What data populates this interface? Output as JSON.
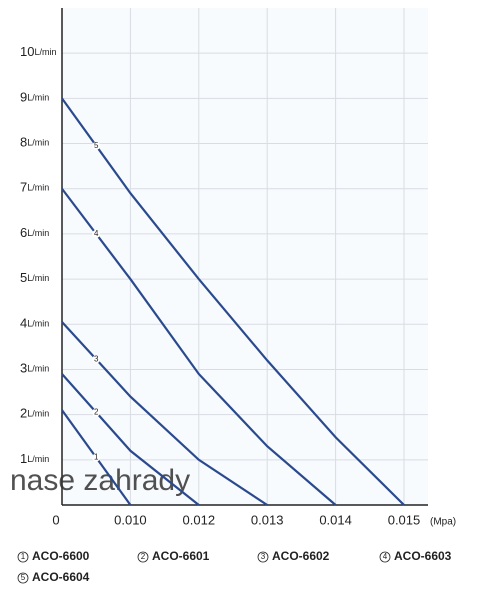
{
  "chart_data": {
    "type": "line",
    "x_unit": "(Mpa)",
    "y_unit": "L/min",
    "watermark": "nase zahrady",
    "categories": [
      "0",
      "0.010",
      "0.012",
      "0.013",
      "0.014",
      "0.015"
    ],
    "ylim": [
      0,
      11
    ],
    "yticks": [
      1,
      2,
      3,
      4,
      5,
      6,
      7,
      8,
      9,
      10
    ],
    "grid": true,
    "series": [
      {
        "name": "ACO-6600",
        "tag": "1",
        "color": "#2b4a8e",
        "values": [
          2.1,
          0,
          null,
          null,
          null,
          null
        ]
      },
      {
        "name": "ACO-6601",
        "tag": "2",
        "color": "#2b4a8e",
        "values": [
          2.9,
          1.2,
          0,
          null,
          null,
          null
        ]
      },
      {
        "name": "ACO-6602",
        "tag": "3",
        "color": "#2b4a8e",
        "values": [
          4.05,
          2.4,
          1.0,
          0,
          null,
          null
        ]
      },
      {
        "name": "ACO-6603",
        "tag": "4",
        "color": "#2b4a8e",
        "values": [
          7,
          5.0,
          2.9,
          1.3,
          0,
          null
        ]
      },
      {
        "name": "ACO-6604",
        "tag": "5",
        "color": "#2b4a8e",
        "values": [
          9,
          6.9,
          5.0,
          3.2,
          1.5,
          0
        ]
      }
    ]
  }
}
